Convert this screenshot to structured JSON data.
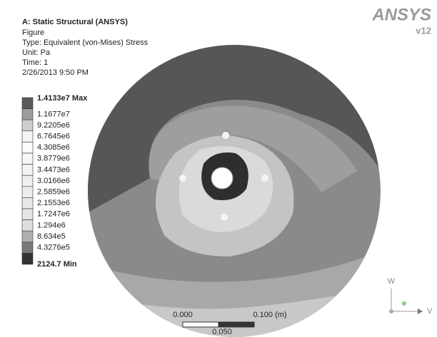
{
  "header": {
    "title": "A: Static Structural (ANSYS)",
    "lines": [
      "Figure",
      "Type: Equivalent (von-Mises) Stress",
      "Unit: Pa",
      "Time: 1",
      "2/26/2013 9:50 PM"
    ]
  },
  "legend": {
    "labels": [
      "1.4133e7 Max",
      "1.1677e7",
      "9.2205e6",
      "6.7645e6",
      "4.3085e6",
      "3.8779e6",
      "3.4473e6",
      "3.0166e6",
      "2.5859e6",
      "2.1553e6",
      "1.7247e6",
      "1.294e6",
      "8.634e5",
      "4.3276e5",
      "2124.7 Min"
    ],
    "colors": [
      "#5a5a5a",
      "#9c9c9c",
      "#cdcdcd",
      "#f4f4f4",
      "#fafafa",
      "#f6f6f6",
      "#f2f2f2",
      "#eeeeee",
      "#ebebeb",
      "#e8e8e8",
      "#e4e4e4",
      "#dddddd",
      "#b0b0b0",
      "#7a7a7a",
      "#333333"
    ]
  },
  "logo": {
    "brand": "ANSYS",
    "version": "v12"
  },
  "scale_bar": {
    "left": "0.000",
    "right": "0.100 (m)",
    "middle": "0.050"
  },
  "triad": {
    "up": "W",
    "right": "V"
  }
}
